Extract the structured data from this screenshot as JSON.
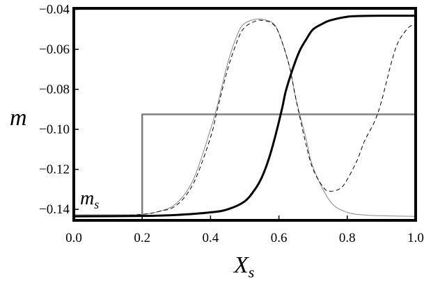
{
  "chart_data": {
    "type": "line",
    "xlabel": "X",
    "xlabel_sub": "s",
    "ylabel": "m",
    "annotation": "m",
    "annotation_sub": "s",
    "xlim": [
      0.0,
      1.0
    ],
    "ylim": [
      -0.1455,
      -0.0395
    ],
    "x_ticks": [
      0.0,
      0.2,
      0.4,
      0.6,
      0.8,
      1.0
    ],
    "x_tick_labels": [
      "0.0",
      "0.2",
      "0.4",
      "0.6",
      "0.8",
      "1.0"
    ],
    "y_ticks": [
      -0.04,
      -0.06,
      -0.08,
      -0.1,
      -0.12,
      -0.14
    ],
    "y_tick_labels": [
      "−0.04",
      "−0.06",
      "−0.08",
      "−0.10",
      "−0.12",
      "−0.14"
    ],
    "grid": false,
    "series": [
      {
        "style": "step",
        "color": "#808080",
        "x": [
          0.0,
          0.2,
          0.2,
          1.0
        ],
        "y": [
          -0.143,
          -0.143,
          -0.0925,
          -0.0925
        ]
      },
      {
        "style": "thin-solid",
        "color": "#888888",
        "x": [
          0.0,
          0.1,
          0.2,
          0.25,
          0.3,
          0.35,
          0.4,
          0.42,
          0.45,
          0.48,
          0.5,
          0.53,
          0.55,
          0.58,
          0.6,
          0.63,
          0.65,
          0.68,
          0.7,
          0.75,
          0.8,
          0.85,
          0.9,
          1.0
        ],
        "y": [
          -0.1435,
          -0.1433,
          -0.1425,
          -0.141,
          -0.137,
          -0.125,
          -0.1,
          -0.088,
          -0.067,
          -0.052,
          -0.047,
          -0.045,
          -0.045,
          -0.0465,
          -0.052,
          -0.068,
          -0.085,
          -0.105,
          -0.119,
          -0.136,
          -0.1415,
          -0.1428,
          -0.1432,
          -0.1435
        ]
      },
      {
        "style": "dashed",
        "color": "#000000",
        "x": [
          0.0,
          0.1,
          0.2,
          0.25,
          0.3,
          0.35,
          0.4,
          0.42,
          0.45,
          0.48,
          0.5,
          0.53,
          0.55,
          0.58,
          0.6,
          0.63,
          0.65,
          0.68,
          0.7,
          0.73,
          0.75,
          0.78,
          0.8,
          0.83,
          0.85,
          0.88,
          0.9,
          0.93,
          0.95,
          0.98,
          1.0
        ],
        "y": [
          -0.1435,
          -0.1433,
          -0.1425,
          -0.141,
          -0.138,
          -0.127,
          -0.104,
          -0.09,
          -0.07,
          -0.055,
          -0.049,
          -0.046,
          -0.0455,
          -0.047,
          -0.052,
          -0.068,
          -0.085,
          -0.108,
          -0.12,
          -0.129,
          -0.131,
          -0.1295,
          -0.125,
          -0.115,
          -0.106,
          -0.096,
          -0.086,
          -0.066,
          -0.056,
          -0.049,
          -0.0475
        ]
      },
      {
        "style": "thick-solid",
        "color": "#000000",
        "x": [
          0.0,
          0.2,
          0.3,
          0.4,
          0.45,
          0.5,
          0.53,
          0.55,
          0.57,
          0.59,
          0.61,
          0.62,
          0.64,
          0.66,
          0.68,
          0.7,
          0.73,
          0.75,
          0.8,
          0.85,
          0.9,
          1.0
        ],
        "y": [
          -0.1435,
          -0.1433,
          -0.1428,
          -0.1415,
          -0.14,
          -0.136,
          -0.13,
          -0.124,
          -0.115,
          -0.103,
          -0.089,
          -0.081,
          -0.07,
          -0.061,
          -0.055,
          -0.05,
          -0.047,
          -0.0455,
          -0.0437,
          -0.0433,
          -0.0432,
          -0.0432
        ]
      }
    ]
  }
}
